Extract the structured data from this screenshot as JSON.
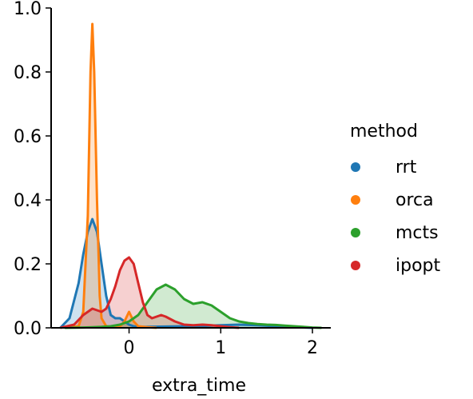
{
  "chart_data": {
    "type": "area",
    "title": "",
    "xlabel": "extra_time",
    "ylabel": "",
    "xlim": [
      -0.85,
      2.2
    ],
    "ylim": [
      0,
      1.0
    ],
    "x_ticks": [
      0,
      1,
      2
    ],
    "x_tick_labels": [
      "0",
      "1",
      "2"
    ],
    "y_ticks": [
      0,
      0.2,
      0.4,
      0.6,
      0.8,
      1.0
    ],
    "y_tick_labels": [
      "0.0",
      "0.2",
      "0.4",
      "0.6",
      "0.8",
      "1.0"
    ],
    "grid": false,
    "legend": {
      "title": "method",
      "placement": "right"
    },
    "series": [
      {
        "name": "rrt",
        "color": "#1f77b4",
        "x": [
          -0.75,
          -0.65,
          -0.55,
          -0.5,
          -0.45,
          -0.4,
          -0.35,
          -0.3,
          -0.25,
          -0.2,
          -0.15,
          -0.1,
          -0.05,
          0.0,
          0.05,
          0.1,
          0.2,
          0.4,
          0.6,
          0.8,
          1.0,
          1.2,
          1.4,
          1.6,
          1.8,
          2.0
        ],
        "y": [
          0.0,
          0.03,
          0.14,
          0.23,
          0.3,
          0.34,
          0.3,
          0.2,
          0.1,
          0.04,
          0.03,
          0.03,
          0.02,
          0.01,
          0.005,
          0.003,
          0.003,
          0.004,
          0.005,
          0.006,
          0.008,
          0.01,
          0.008,
          0.005,
          0.002,
          0.0
        ]
      },
      {
        "name": "orca",
        "color": "#ff7f0e",
        "x": [
          -0.7,
          -0.55,
          -0.5,
          -0.45,
          -0.42,
          -0.4,
          -0.38,
          -0.35,
          -0.32,
          -0.3,
          -0.25,
          -0.2,
          -0.1,
          -0.05,
          0.0,
          0.05,
          0.1,
          0.2,
          0.3
        ],
        "y": [
          0.0,
          0.005,
          0.05,
          0.35,
          0.8,
          0.95,
          0.8,
          0.4,
          0.1,
          0.03,
          0.005,
          0.003,
          0.004,
          0.02,
          0.05,
          0.02,
          0.005,
          0.002,
          0.0
        ]
      },
      {
        "name": "mcts",
        "color": "#2ca02c",
        "x": [
          -0.7,
          -0.5,
          -0.4,
          -0.3,
          -0.2,
          -0.1,
          0.0,
          0.1,
          0.2,
          0.3,
          0.4,
          0.5,
          0.6,
          0.7,
          0.8,
          0.9,
          1.0,
          1.1,
          1.2,
          1.3,
          1.4,
          1.5,
          1.6,
          1.7,
          1.8,
          1.9,
          2.0,
          2.1
        ],
        "y": [
          0.0,
          0.001,
          0.002,
          0.003,
          0.005,
          0.01,
          0.02,
          0.04,
          0.08,
          0.12,
          0.135,
          0.12,
          0.09,
          0.075,
          0.08,
          0.07,
          0.05,
          0.03,
          0.02,
          0.015,
          0.012,
          0.01,
          0.009,
          0.007,
          0.005,
          0.003,
          0.001,
          0.0
        ]
      },
      {
        "name": "ipopt",
        "color": "#d62728",
        "x": [
          -0.75,
          -0.6,
          -0.5,
          -0.4,
          -0.35,
          -0.3,
          -0.25,
          -0.2,
          -0.15,
          -0.1,
          -0.05,
          0.0,
          0.05,
          0.1,
          0.15,
          0.2,
          0.25,
          0.3,
          0.35,
          0.4,
          0.5,
          0.6,
          0.7,
          0.8,
          0.9,
          1.0,
          1.1,
          1.2
        ],
        "y": [
          0.0,
          0.01,
          0.04,
          0.06,
          0.055,
          0.05,
          0.06,
          0.09,
          0.13,
          0.18,
          0.21,
          0.22,
          0.2,
          0.14,
          0.08,
          0.04,
          0.03,
          0.035,
          0.04,
          0.035,
          0.02,
          0.01,
          0.008,
          0.01,
          0.008,
          0.005,
          0.002,
          0.0
        ]
      }
    ]
  }
}
